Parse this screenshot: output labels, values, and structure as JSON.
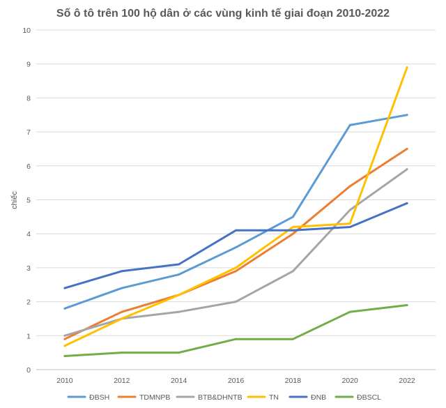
{
  "chart_data": {
    "type": "line",
    "title": "Số ô tô trên 100 hộ dân ở các vùng kinh tế giai đoạn 2010-2022",
    "xlabel": "",
    "ylabel": "chiếc",
    "categories": [
      "2010",
      "2012",
      "2014",
      "2016",
      "2018",
      "2020",
      "2022"
    ],
    "ylim": [
      0,
      10
    ],
    "yticks": [
      "0",
      "1",
      "2",
      "3",
      "4",
      "5",
      "6",
      "7",
      "8",
      "9",
      "10"
    ],
    "grid": true,
    "legend_position": "bottom",
    "series": [
      {
        "name": "ĐBSH",
        "color": "#5b9bd5",
        "values": [
          1.8,
          2.4,
          2.8,
          3.6,
          4.5,
          7.2,
          7.5
        ]
      },
      {
        "name": "TDMNPB",
        "color": "#ed7d31",
        "values": [
          0.9,
          1.7,
          2.2,
          2.9,
          4.0,
          5.4,
          6.5
        ]
      },
      {
        "name": "BTB&DHNTB",
        "color": "#a5a5a5",
        "values": [
          1.0,
          1.5,
          1.7,
          2.0,
          2.9,
          4.7,
          5.9
        ]
      },
      {
        "name": "TN",
        "color": "#ffc000",
        "values": [
          0.7,
          1.5,
          2.2,
          3.0,
          4.2,
          4.3,
          8.9
        ]
      },
      {
        "name": "ĐNB",
        "color": "#4472c4",
        "values": [
          2.4,
          2.9,
          3.1,
          4.1,
          4.1,
          4.2,
          4.9
        ]
      },
      {
        "name": "ĐBSCL",
        "color": "#70ad47",
        "values": [
          0.4,
          0.5,
          0.5,
          0.9,
          0.9,
          1.7,
          1.9
        ]
      }
    ]
  }
}
